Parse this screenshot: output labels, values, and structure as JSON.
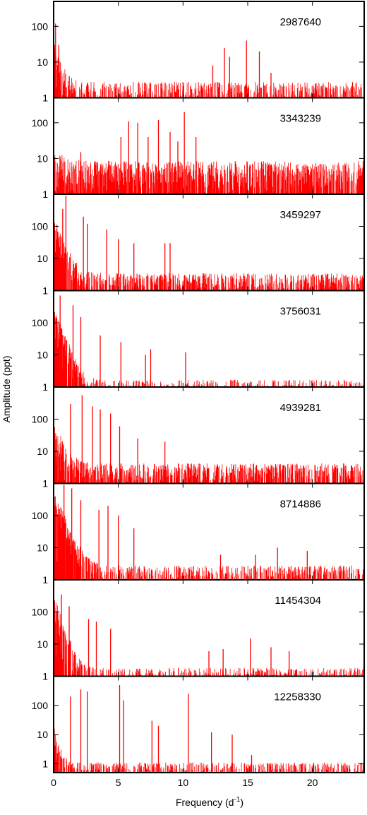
{
  "chart_data": {
    "type": "line",
    "ylabel": "Amplitude (ppt)",
    "xlabel_main": "Frequency (d",
    "xlabel_sup": "-1",
    "xlabel_end": ")",
    "xlim": [
      0,
      24
    ],
    "x_ticks": [
      0,
      5,
      10,
      15,
      20
    ],
    "x_tick_labels": [
      "0",
      "5",
      "10",
      "15",
      "20"
    ],
    "y_scale": "log",
    "series_color": "#ff0000",
    "panels": [
      {
        "id": "2987640",
        "ylim": [
          1,
          500
        ],
        "y_ticks": [
          1,
          10,
          100
        ],
        "y_tick_labels": [
          "1",
          "10",
          "100"
        ],
        "noise": {
          "base": 2,
          "low": 30,
          "decay": 0.35
        },
        "peaks": [
          [
            0.15,
            120
          ],
          [
            0.4,
            30
          ],
          [
            13.2,
            25
          ],
          [
            13.6,
            14
          ],
          [
            14.9,
            40
          ],
          [
            15.9,
            20
          ],
          [
            12.3,
            8
          ],
          [
            16.8,
            5
          ]
        ]
      },
      {
        "id": "3343239",
        "ylim": [
          1,
          500
        ],
        "y_ticks": [
          1,
          10,
          100
        ],
        "y_tick_labels": [
          "1",
          "10",
          "100"
        ],
        "noise": {
          "base": 6,
          "low": 6,
          "decay": 1
        },
        "peaks": [
          [
            5.2,
            40
          ],
          [
            5.8,
            110
          ],
          [
            6.5,
            100
          ],
          [
            7.3,
            40
          ],
          [
            8.1,
            120
          ],
          [
            9.0,
            55
          ],
          [
            9.6,
            30
          ],
          [
            10.1,
            200
          ],
          [
            11.0,
            40
          ],
          [
            2.1,
            15
          ]
        ]
      },
      {
        "id": "3459297",
        "ylim": [
          1,
          1000
        ],
        "y_ticks": [
          1,
          10,
          100
        ],
        "y_tick_labels": [
          "1",
          "10",
          "100"
        ],
        "noise": {
          "base": 2.5,
          "low": 150,
          "decay": 0.45
        },
        "peaks": [
          [
            0.95,
            900
          ],
          [
            0.7,
            350
          ],
          [
            2.3,
            200
          ],
          [
            2.6,
            120
          ],
          [
            4.1,
            80
          ],
          [
            5.0,
            40
          ],
          [
            6.2,
            30
          ],
          [
            8.6,
            30
          ],
          [
            9.0,
            30
          ]
        ]
      },
      {
        "id": "3756031",
        "ylim": [
          1,
          1000
        ],
        "y_ticks": [
          1,
          10,
          100
        ],
        "y_tick_labels": [
          "1",
          "10",
          "100"
        ],
        "noise": {
          "base": 1.2,
          "low": 250,
          "decay": 0.42
        },
        "peaks": [
          [
            0.5,
            700
          ],
          [
            1.5,
            350
          ],
          [
            2.1,
            150
          ],
          [
            3.6,
            40
          ],
          [
            5.2,
            25
          ],
          [
            7.5,
            15
          ],
          [
            10.2,
            12
          ],
          [
            7.1,
            10
          ]
        ]
      },
      {
        "id": "4939281",
        "ylim": [
          1,
          1000
        ],
        "y_ticks": [
          1,
          10,
          100
        ],
        "y_tick_labels": [
          "1",
          "10",
          "100"
        ],
        "noise": {
          "base": 3,
          "low": 60,
          "decay": 0.5
        },
        "peaks": [
          [
            1.3,
            300
          ],
          [
            2.2,
            550
          ],
          [
            3.0,
            250
          ],
          [
            3.6,
            200
          ],
          [
            4.4,
            150
          ],
          [
            5.1,
            60
          ],
          [
            8.6,
            20
          ],
          [
            6.5,
            25
          ]
        ]
      },
      {
        "id": "8714886",
        "ylim": [
          1,
          1000
        ],
        "y_ticks": [
          1,
          10,
          100
        ],
        "y_tick_labels": [
          "1",
          "10",
          "100"
        ],
        "noise": {
          "base": 2,
          "low": 400,
          "decay": 0.5
        },
        "peaks": [
          [
            0.8,
            900
          ],
          [
            1.4,
            700
          ],
          [
            2.1,
            300
          ],
          [
            3.5,
            150
          ],
          [
            4.2,
            200
          ],
          [
            5.0,
            100
          ],
          [
            12.9,
            6
          ],
          [
            15.6,
            6
          ],
          [
            17.3,
            10
          ],
          [
            19.6,
            8
          ],
          [
            6.2,
            40
          ]
        ]
      },
      {
        "id": "11454304",
        "ylim": [
          1,
          1000
        ],
        "y_ticks": [
          1,
          10,
          100
        ],
        "y_tick_labels": [
          "1",
          "10",
          "100"
        ],
        "noise": {
          "base": 1.3,
          "low": 250,
          "decay": 0.38
        },
        "peaks": [
          [
            0.6,
            350
          ],
          [
            1.2,
            150
          ],
          [
            2.7,
            60
          ],
          [
            3.3,
            50
          ],
          [
            4.4,
            30
          ],
          [
            12.0,
            6
          ],
          [
            13.1,
            7
          ],
          [
            15.2,
            15
          ],
          [
            16.8,
            8
          ],
          [
            18.2,
            6
          ]
        ]
      },
      {
        "id": "12258330",
        "ylim": [
          0.5,
          1000
        ],
        "y_ticks": [
          1,
          10,
          100
        ],
        "y_tick_labels": [
          "1",
          "10",
          "100"
        ],
        "noise": {
          "base": 0.8,
          "low": 15,
          "decay": 0.25
        },
        "peaks": [
          [
            1.3,
            200
          ],
          [
            2.1,
            350
          ],
          [
            2.6,
            300
          ],
          [
            5.1,
            500
          ],
          [
            5.4,
            150
          ],
          [
            10.4,
            250
          ],
          [
            7.6,
            30
          ],
          [
            12.2,
            12
          ],
          [
            13.8,
            10
          ],
          [
            15.3,
            2
          ],
          [
            8.1,
            20
          ]
        ]
      }
    ]
  }
}
